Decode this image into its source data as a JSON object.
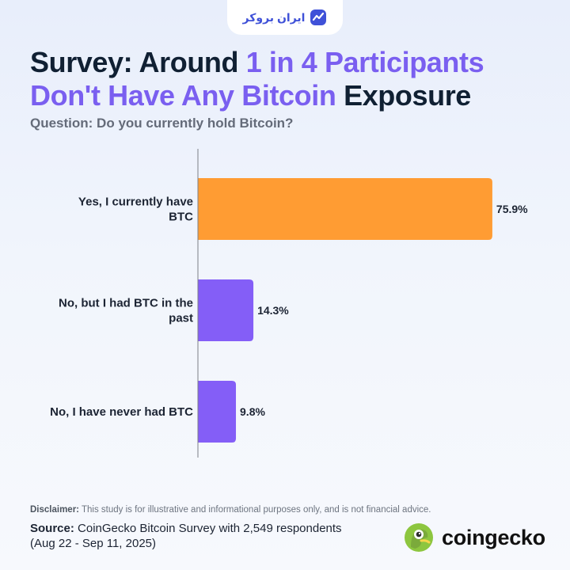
{
  "brand": {
    "name": "ایران بروکر",
    "icon": "iranbroker-logo-icon"
  },
  "title": {
    "part1": "Survey: Around ",
    "highlight": "1 in 4 Participants Don't Have Any Bitcoin",
    "part2": " Exposure"
  },
  "subtitle": "Question: Do you currently hold Bitcoin?",
  "chart_data": {
    "type": "bar",
    "orientation": "horizontal",
    "categories": [
      "Yes, I currently have BTC",
      "No, but I had BTC in the past",
      "No, I have never had BTC"
    ],
    "values": [
      75.9,
      14.3,
      9.8
    ],
    "value_labels": [
      "75.9%",
      "14.3%",
      "9.8%"
    ],
    "colors": [
      "#ff9c33",
      "#845ef7",
      "#845ef7"
    ],
    "xlim": [
      0,
      100
    ],
    "grid": false,
    "title": "",
    "xlabel": "",
    "ylabel": ""
  },
  "footer": {
    "disclaimer_label": "Disclaimer:",
    "disclaimer_text": " This study is for illustrative and informational purposes only, and is not financial advice.",
    "source_label": "Source:",
    "source_text": " CoinGecko Bitcoin Survey with 2,549 respondents (Aug 22 - Sep 11, 2025)",
    "logo_text": "coingecko",
    "logo_icon": "coingecko-gecko-icon"
  }
}
